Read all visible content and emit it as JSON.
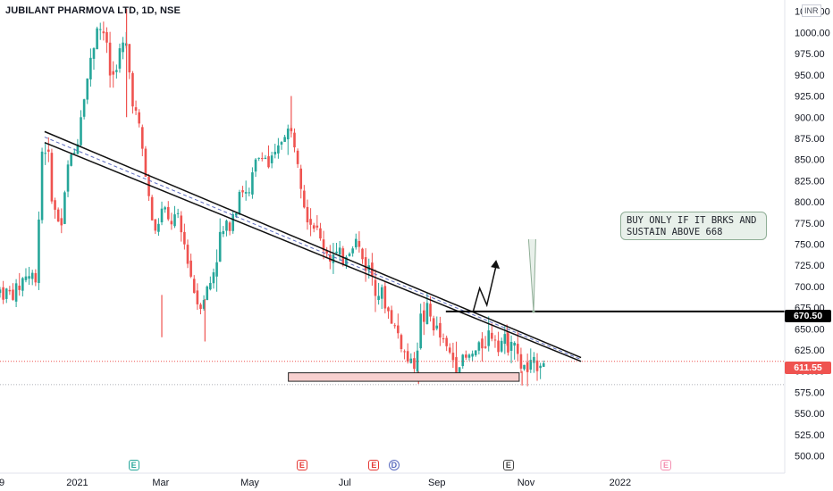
{
  "chart_data": {
    "type": "candlestick",
    "title": "JUBILANT PHARMOVA LTD, 1D, NSE",
    "currency": "INR",
    "y_axis": {
      "ylim": [
        490,
        1030
      ],
      "ticks": [
        "500.00",
        "525.00",
        "550.00",
        "575.00",
        "600.00",
        "625.00",
        "650.00",
        "675.00",
        "700.00",
        "725.00",
        "750.00",
        "775.00",
        "800.00",
        "825.00",
        "850.00",
        "875.00",
        "900.00",
        "925.00",
        "950.00",
        "975.00",
        "1000.00",
        "1025.00"
      ]
    },
    "x_axis": {
      "labels": [
        {
          "text": "9",
          "pos": -0.02
        },
        {
          "text": "2021",
          "pos": 0.1
        },
        {
          "text": "Mar",
          "pos": 0.216
        },
        {
          "text": "May",
          "pos": 0.34
        },
        {
          "text": "Jul",
          "pos": 0.472
        },
        {
          "text": "Sep",
          "pos": 0.6
        },
        {
          "text": "Nov",
          "pos": 0.724
        },
        {
          "text": "2022",
          "pos": 0.855
        }
      ]
    },
    "price_path": [
      [
        0.0,
        695
      ],
      [
        0.02,
        690
      ],
      [
        0.035,
        715
      ],
      [
        0.05,
        710
      ],
      [
        0.058,
        860
      ],
      [
        0.064,
        870
      ],
      [
        0.075,
        790
      ],
      [
        0.085,
        770
      ],
      [
        0.095,
        845
      ],
      [
        0.105,
        860
      ],
      [
        0.115,
        920
      ],
      [
        0.125,
        960
      ],
      [
        0.135,
        1010
      ],
      [
        0.145,
        1000
      ],
      [
        0.155,
        940
      ],
      [
        0.165,
        975
      ],
      [
        0.175,
        985
      ],
      [
        0.185,
        920
      ],
      [
        0.195,
        880
      ],
      [
        0.205,
        815
      ],
      [
        0.215,
        760
      ],
      [
        0.225,
        790
      ],
      [
        0.235,
        775
      ],
      [
        0.245,
        780
      ],
      [
        0.255,
        755
      ],
      [
        0.265,
        715
      ],
      [
        0.275,
        680
      ],
      [
        0.285,
        690
      ],
      [
        0.295,
        710
      ],
      [
        0.305,
        755
      ],
      [
        0.315,
        770
      ],
      [
        0.325,
        790
      ],
      [
        0.335,
        820
      ],
      [
        0.345,
        800
      ],
      [
        0.355,
        845
      ],
      [
        0.365,
        860
      ],
      [
        0.375,
        840
      ],
      [
        0.385,
        855
      ],
      [
        0.395,
        885
      ],
      [
        0.405,
        880
      ],
      [
        0.415,
        855
      ],
      [
        0.425,
        790
      ],
      [
        0.435,
        775
      ],
      [
        0.445,
        755
      ],
      [
        0.455,
        740
      ],
      [
        0.465,
        735
      ],
      [
        0.475,
        730
      ],
      [
        0.485,
        745
      ],
      [
        0.495,
        755
      ],
      [
        0.505,
        730
      ],
      [
        0.515,
        720
      ],
      [
        0.525,
        700
      ],
      [
        0.535,
        680
      ],
      [
        0.545,
        660
      ],
      [
        0.555,
        640
      ],
      [
        0.565,
        615
      ],
      [
        0.575,
        605
      ],
      [
        0.585,
        660
      ],
      [
        0.595,
        670
      ],
      [
        0.605,
        650
      ],
      [
        0.615,
        635
      ],
      [
        0.625,
        620
      ],
      [
        0.635,
        610
      ],
      [
        0.645,
        612
      ],
      [
        0.655,
        618
      ],
      [
        0.665,
        625
      ],
      [
        0.675,
        640
      ],
      [
        0.685,
        645
      ],
      [
        0.695,
        638
      ],
      [
        0.705,
        630
      ],
      [
        0.713,
        650
      ],
      [
        0.72,
        610
      ],
      [
        0.728,
        605
      ],
      [
        0.735,
        598
      ],
      [
        0.742,
        605
      ],
      [
        0.75,
        615
      ],
      [
        0.757,
        612
      ]
    ],
    "wick_spikes": [
      {
        "pos": 0.176,
        "high": 1028,
        "low": 900
      },
      {
        "pos": 0.225,
        "high": 690,
        "low": 640
      },
      {
        "pos": 0.285,
        "high": 685,
        "low": 635
      },
      {
        "pos": 0.405,
        "high": 925,
        "low": 880
      },
      {
        "pos": 0.582,
        "high": 600,
        "low": 585
      },
      {
        "pos": 0.705,
        "high": 655,
        "low": 630
      },
      {
        "pos": 0.726,
        "high": 600,
        "low": 583
      }
    ],
    "last_price": 611.55,
    "annotations": {
      "resistance_level": 670.5,
      "resistance_label": "670.50",
      "last_price_label": "611.55",
      "callout_lines": [
        "BUY ONLY IF IT BRKS AND",
        "SUSTAIN ABOVE 668"
      ],
      "support_zone": [
        588,
        598
      ],
      "trendline_channel": {
        "start": {
          "pos": 0.062,
          "value_top": 883,
          "value_bottom": 870
        },
        "end": {
          "pos": 0.808,
          "value_top": 616,
          "value_bottom": 603
        }
      }
    },
    "events": [
      {
        "label": "E",
        "pos": 0.186,
        "color": "#26a69a",
        "round": false
      },
      {
        "label": "E",
        "pos": 0.42,
        "color": "#e53935",
        "round": false
      },
      {
        "label": "E",
        "pos": 0.52,
        "color": "#e53935",
        "round": false
      },
      {
        "label": "D",
        "pos": 0.548,
        "color": "#5b6bbf",
        "round": true
      },
      {
        "label": "E",
        "pos": 0.707,
        "color": "#444",
        "round": false
      },
      {
        "label": "E",
        "pos": 0.926,
        "color": "#f48fb1",
        "round": false
      }
    ],
    "colors": {
      "up": "#26a69a",
      "down": "#ef5350",
      "callout_border": "#8fae96",
      "callout_fill": "#e8f0ea",
      "zone_fill": "#f7d0cf",
      "last_price_bg": "#ef5350",
      "resistance_bg": "#000000"
    }
  }
}
